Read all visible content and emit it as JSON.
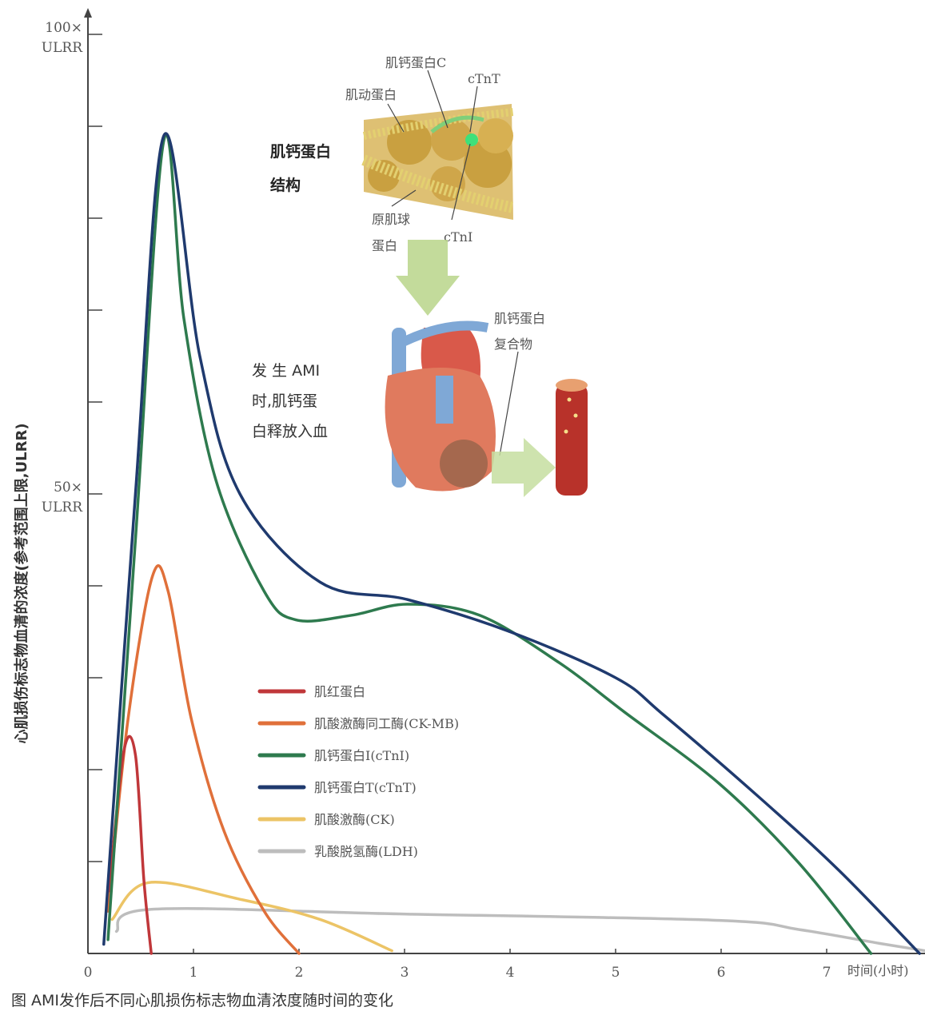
{
  "chart_data": {
    "type": "line",
    "title": "",
    "xlabel": "时间(小时)",
    "ylabel": "心肌损伤标志物血清的浓度(参考范围上限,ULRR)",
    "xlim": [
      0,
      7.9
    ],
    "ylim": [
      0,
      100
    ],
    "x_ticks": [
      "0",
      "1",
      "2",
      "3",
      "4",
      "5",
      "6",
      "7"
    ],
    "y_tick_labels": [
      {
        "value": 100,
        "line1": "100×",
        "line2": "ULRR"
      },
      {
        "value": 50,
        "line1": "50×",
        "line2": "ULRR"
      }
    ],
    "y_ticks_unlabeled": [
      10,
      20,
      30,
      40,
      60,
      70,
      80,
      90
    ],
    "grid": false,
    "legend_position": "center-left",
    "series": [
      {
        "name": "肌红蛋白",
        "color": "#c0373a",
        "points": [
          [
            0.2,
            6.8
          ],
          [
            0.34,
            22
          ],
          [
            0.45,
            21.6
          ],
          [
            0.53,
            8
          ],
          [
            0.6,
            0
          ]
        ]
      },
      {
        "name": "肌酸激酶同工酶(CK-MB)",
        "color": "#e0703a",
        "points": [
          [
            0.19,
            4.6
          ],
          [
            0.38,
            25.5
          ],
          [
            0.61,
            41
          ],
          [
            0.76,
            39.4
          ],
          [
            0.98,
            25.5
          ],
          [
            1.29,
            13.3
          ],
          [
            1.67,
            4.6
          ],
          [
            2.0,
            0
          ]
        ]
      },
      {
        "name": "肌钙蛋白I(cTnI)",
        "color": "#2e7a4e",
        "points": [
          [
            0.19,
            1.5
          ],
          [
            0.45,
            45
          ],
          [
            0.72,
            88.5
          ],
          [
            0.91,
            69
          ],
          [
            1.21,
            51.6
          ],
          [
            1.67,
            39.4
          ],
          [
            1.97,
            36.3
          ],
          [
            2.5,
            36.8
          ],
          [
            3.03,
            38
          ],
          [
            3.71,
            36.8
          ],
          [
            4.47,
            31.6
          ],
          [
            5.08,
            26.3
          ],
          [
            5.98,
            18.5
          ],
          [
            6.74,
            9.8
          ],
          [
            7.42,
            0
          ]
        ]
      },
      {
        "name": "肌钙蛋白T(cTnT)",
        "color": "#1f3a6e",
        "points": [
          [
            0.15,
            1
          ],
          [
            0.45,
            50
          ],
          [
            0.72,
            89
          ],
          [
            1.06,
            65
          ],
          [
            1.44,
            50
          ],
          [
            2.2,
            40.4
          ],
          [
            3.03,
            38.5
          ],
          [
            4.0,
            35
          ],
          [
            5.0,
            30
          ],
          [
            5.45,
            26
          ],
          [
            6.36,
            17
          ],
          [
            7.12,
            9
          ],
          [
            7.88,
            0
          ]
        ]
      },
      {
        "name": "肌酸激酶(CK)",
        "color": "#ecc466",
        "points": [
          [
            0.23,
            3.7
          ],
          [
            0.57,
            7.7
          ],
          [
            1.44,
            5.9
          ],
          [
            2.2,
            3.7
          ],
          [
            2.88,
            0.3
          ]
        ]
      },
      {
        "name": "乳酸脱氢酶(LDH)",
        "color": "#bdbdbd",
        "points": [
          [
            0.27,
            2.4
          ],
          [
            0.6,
            4.8
          ],
          [
            2.95,
            4.3
          ],
          [
            5.98,
            3.6
          ],
          [
            6.74,
            2.6
          ],
          [
            7.5,
            1.1
          ],
          [
            7.93,
            0.3
          ]
        ]
      }
    ]
  },
  "illustration": {
    "structure_title_1": "肌钙蛋白",
    "structure_title_2": "结构",
    "label_tnc": "肌钙蛋白C",
    "label_ctnt": "cTnT",
    "label_actin": "肌动蛋白",
    "label_tropomyosin_1": "原肌球",
    "label_tropomyosin_2": "蛋白",
    "label_ctni": "cTnI",
    "label_complex_1": "肌钙蛋白",
    "label_complex_2": "复合物",
    "ami_text_1": "发 生 AMI",
    "ami_text_2": "时,肌钙蛋",
    "ami_text_3": "白释放入血"
  },
  "caption": "图 AMI发作后不同心肌损伤标志物血清浓度随时间的变化"
}
